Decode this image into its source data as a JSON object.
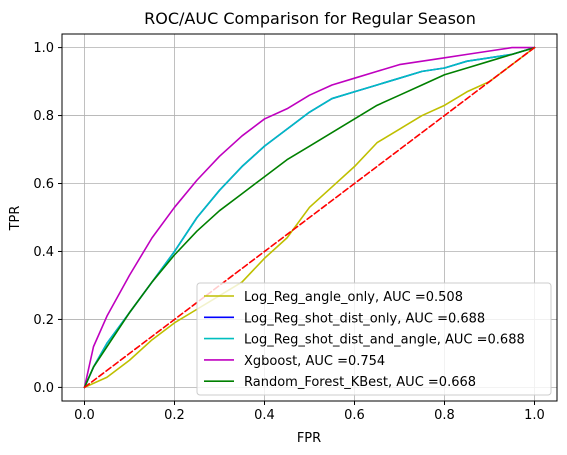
{
  "chart_data": {
    "type": "line",
    "title": "ROC/AUC Comparison for Regular Season",
    "xlabel": "FPR",
    "ylabel": "TPR",
    "xlim": [
      -0.05,
      1.05
    ],
    "ylim": [
      -0.04,
      1.04
    ],
    "xticks": [
      "0.0",
      "0.2",
      "0.4",
      "0.6",
      "0.8",
      "1.0"
    ],
    "yticks": [
      "0.0",
      "0.2",
      "0.4",
      "0.6",
      "0.8",
      "1.0"
    ],
    "grid": true,
    "legend_position": "lower-right",
    "series": [
      {
        "name": "Log_Reg_angle_only, AUC =0.508",
        "color": "#bfbf00",
        "style": "solid",
        "x": [
          0,
          0.05,
          0.1,
          0.15,
          0.2,
          0.25,
          0.3,
          0.35,
          0.4,
          0.45,
          0.5,
          0.55,
          0.6,
          0.65,
          0.7,
          0.75,
          0.8,
          0.85,
          0.9,
          0.95,
          1.0
        ],
        "y": [
          0,
          0.03,
          0.08,
          0.14,
          0.19,
          0.23,
          0.27,
          0.31,
          0.38,
          0.44,
          0.53,
          0.59,
          0.65,
          0.72,
          0.76,
          0.8,
          0.83,
          0.87,
          0.9,
          0.95,
          1.0
        ]
      },
      {
        "name": "Log_Reg_shot_dist_only, AUC =0.688",
        "color": "#0000ff",
        "style": "solid",
        "x": [
          0,
          0.02,
          0.05,
          0.1,
          0.15,
          0.2,
          0.25,
          0.3,
          0.35,
          0.4,
          0.45,
          0.5,
          0.55,
          0.6,
          0.65,
          0.7,
          0.75,
          0.8,
          0.85,
          0.9,
          0.95,
          1.0
        ],
        "y": [
          0,
          0.06,
          0.13,
          0.22,
          0.31,
          0.4,
          0.5,
          0.58,
          0.65,
          0.71,
          0.76,
          0.81,
          0.85,
          0.87,
          0.89,
          0.91,
          0.93,
          0.94,
          0.96,
          0.97,
          0.98,
          1.0
        ]
      },
      {
        "name": "Log_Reg_shot_dist_and_angle, AUC =0.688",
        "color": "#00bfbf",
        "style": "solid",
        "x": [
          0,
          0.02,
          0.05,
          0.1,
          0.15,
          0.2,
          0.25,
          0.3,
          0.35,
          0.4,
          0.45,
          0.5,
          0.55,
          0.6,
          0.65,
          0.7,
          0.75,
          0.8,
          0.85,
          0.9,
          0.95,
          1.0
        ],
        "y": [
          0,
          0.06,
          0.13,
          0.22,
          0.31,
          0.4,
          0.5,
          0.58,
          0.65,
          0.71,
          0.76,
          0.81,
          0.85,
          0.87,
          0.89,
          0.91,
          0.93,
          0.94,
          0.96,
          0.97,
          0.98,
          1.0
        ]
      },
      {
        "name": "Xgboost, AUC =0.754",
        "color": "#bf00bf",
        "style": "solid",
        "x": [
          0,
          0.02,
          0.05,
          0.1,
          0.15,
          0.2,
          0.25,
          0.3,
          0.35,
          0.4,
          0.45,
          0.5,
          0.55,
          0.6,
          0.65,
          0.7,
          0.75,
          0.8,
          0.85,
          0.9,
          0.95,
          1.0
        ],
        "y": [
          0,
          0.12,
          0.21,
          0.33,
          0.44,
          0.53,
          0.61,
          0.68,
          0.74,
          0.79,
          0.82,
          0.86,
          0.89,
          0.91,
          0.93,
          0.95,
          0.96,
          0.97,
          0.98,
          0.99,
          1.0,
          1.0
        ]
      },
      {
        "name": "Random_Forest_KBest, AUC =0.668",
        "color": "#008000",
        "style": "solid",
        "x": [
          0,
          0.02,
          0.05,
          0.1,
          0.15,
          0.2,
          0.25,
          0.3,
          0.35,
          0.4,
          0.45,
          0.5,
          0.55,
          0.6,
          0.65,
          0.7,
          0.75,
          0.8,
          0.85,
          0.9,
          0.95,
          1.0
        ],
        "y": [
          0,
          0.06,
          0.12,
          0.22,
          0.31,
          0.39,
          0.46,
          0.52,
          0.57,
          0.62,
          0.67,
          0.71,
          0.75,
          0.79,
          0.83,
          0.86,
          0.89,
          0.92,
          0.94,
          0.96,
          0.98,
          1.0
        ]
      },
      {
        "name": "",
        "color": "#ff0000",
        "style": "dashed",
        "x": [
          0,
          1
        ],
        "y": [
          0,
          1
        ]
      }
    ]
  }
}
